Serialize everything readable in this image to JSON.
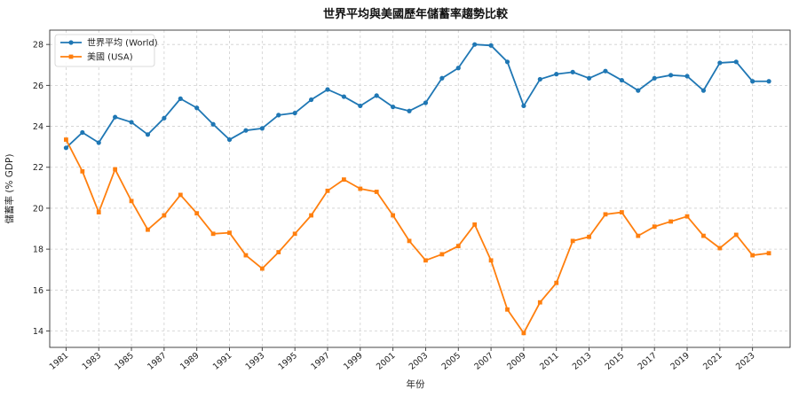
{
  "chart_data": {
    "type": "line",
    "title": "世界平均與美國歷年儲蓄率趨勢比較",
    "xlabel": "年份",
    "ylabel": "儲蓄率 (% GDP)",
    "xlim": [
      1980,
      2025.3
    ],
    "ylim": [
      13.2,
      28.7
    ],
    "grid": true,
    "legend_position": "top-left",
    "x_ticks": [
      1981,
      1983,
      1985,
      1987,
      1989,
      1991,
      1993,
      1995,
      1997,
      1999,
      2001,
      2003,
      2005,
      2007,
      2009,
      2011,
      2013,
      2015,
      2017,
      2019,
      2021,
      2023
    ],
    "y_ticks": [
      14,
      16,
      18,
      20,
      22,
      24,
      26,
      28
    ],
    "x": [
      1981,
      1982,
      1983,
      1984,
      1985,
      1986,
      1987,
      1988,
      1989,
      1990,
      1991,
      1992,
      1993,
      1994,
      1995,
      1996,
      1997,
      1998,
      1999,
      2000,
      2001,
      2002,
      2003,
      2004,
      2005,
      2006,
      2007,
      2008,
      2009,
      2010,
      2011,
      2012,
      2013,
      2014,
      2015,
      2016,
      2017,
      2018,
      2019,
      2020,
      2021,
      2022,
      2023,
      2024
    ],
    "series": [
      {
        "name": "世界平均 (World)",
        "color": "#1f77b4",
        "marker": "circle",
        "values": [
          22.95,
          23.7,
          23.2,
          24.45,
          24.2,
          23.6,
          24.4,
          25.35,
          24.9,
          24.1,
          23.35,
          23.8,
          23.9,
          24.55,
          24.65,
          25.3,
          25.8,
          25.45,
          25.0,
          25.5,
          24.95,
          24.75,
          25.15,
          26.35,
          26.85,
          28.0,
          27.95,
          27.15,
          25.0,
          26.3,
          26.55,
          26.65,
          26.35,
          26.7,
          26.25,
          25.75,
          26.35,
          26.5,
          26.45,
          25.75,
          27.1,
          27.15,
          26.2,
          26.2
        ]
      },
      {
        "name": "美國 (USA)",
        "color": "#ff7f0e",
        "marker": "square",
        "values": [
          23.35,
          21.8,
          19.8,
          21.9,
          20.35,
          18.95,
          19.65,
          20.65,
          19.75,
          18.75,
          18.8,
          17.7,
          17.05,
          17.85,
          18.75,
          19.65,
          20.85,
          21.4,
          20.95,
          20.8,
          19.65,
          18.4,
          17.45,
          17.75,
          18.15,
          19.2,
          17.45,
          15.05,
          13.9,
          15.4,
          16.35,
          18.4,
          18.6,
          19.7,
          19.8,
          18.65,
          19.1,
          19.35,
          19.6,
          18.65,
          18.05,
          18.7,
          17.7,
          17.8
        ]
      }
    ]
  }
}
